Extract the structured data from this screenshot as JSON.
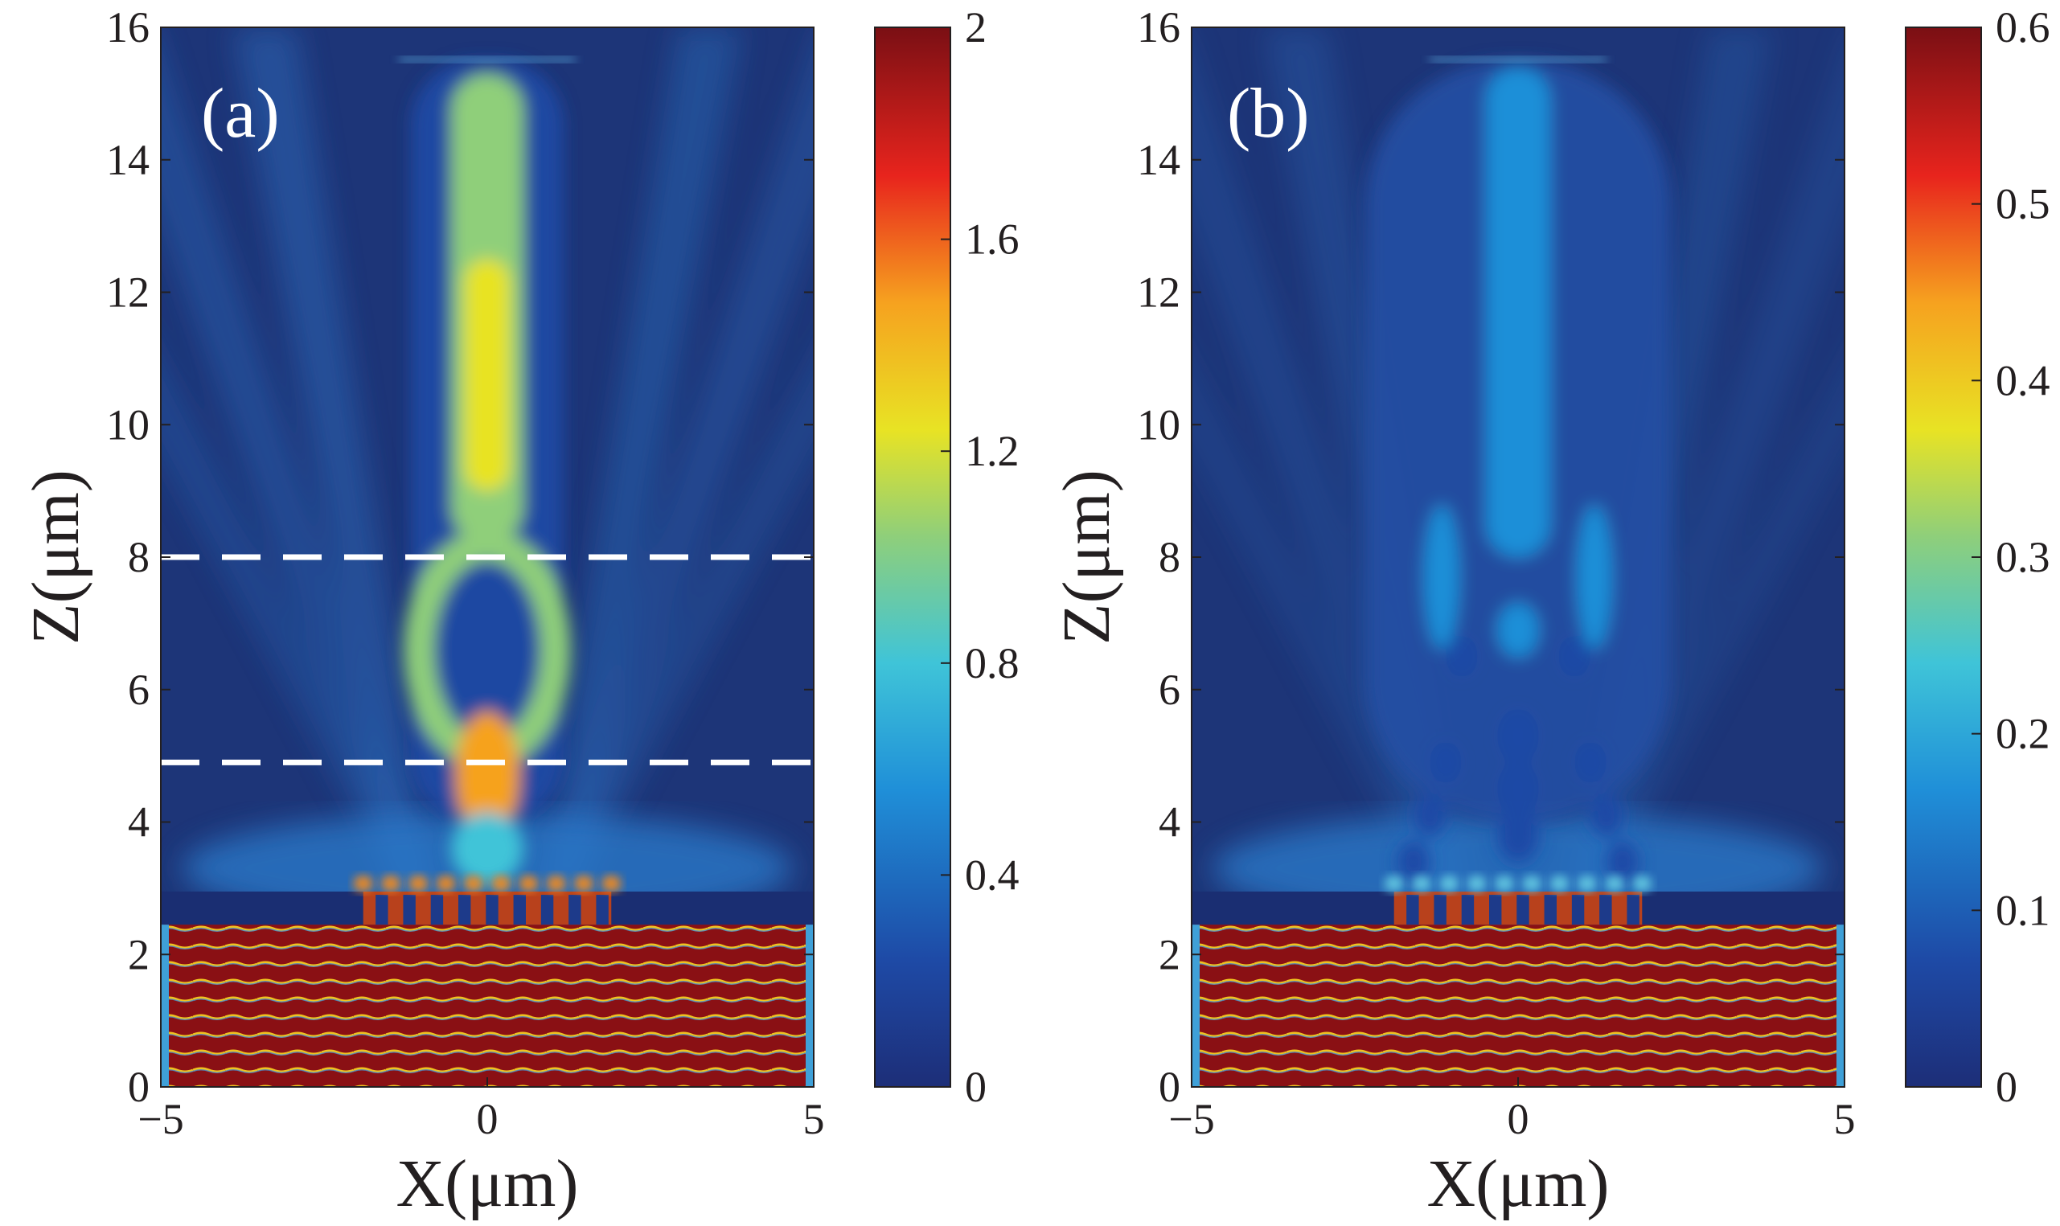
{
  "chart_data": [
    {
      "type": "heatmap",
      "panel_label": "(a)",
      "xlabel": "X(μm)",
      "ylabel": "Z(μm)",
      "xlim": [
        -5,
        5
      ],
      "ylim": [
        0,
        16
      ],
      "xticks": [
        -5,
        0,
        5
      ],
      "xtick_labels": [
        "−5",
        "0",
        "5"
      ],
      "yticks": [
        0,
        2,
        4,
        6,
        8,
        10,
        12,
        14,
        16
      ],
      "ytick_labels": [
        "0",
        "2",
        "4",
        "6",
        "8",
        "10",
        "12",
        "14",
        "16"
      ],
      "colorbar": {
        "min": 0,
        "max": 2,
        "ticks": [
          0,
          0.4,
          0.8,
          1.2,
          1.6,
          2
        ],
        "tick_labels": [
          "0",
          "0.4",
          "0.8",
          "1.2",
          "1.6",
          "2"
        ]
      },
      "focus_peak": 1.5,
      "dashed_lines_z": [
        8,
        4.9
      ],
      "grating_columns": 9,
      "grating_x_range": [
        -1.9,
        1.9
      ],
      "grating_z_range": [
        2.45,
        2.95
      ],
      "substrate_z_top": 2.45,
      "annotation": "white dashed horizontal lines"
    },
    {
      "type": "heatmap",
      "panel_label": "(b)",
      "xlabel": "X(μm)",
      "ylabel": "Z(μm)",
      "xlim": [
        -5,
        5
      ],
      "ylim": [
        0,
        16
      ],
      "xticks": [
        -5,
        0,
        5
      ],
      "xtick_labels": [
        "−5",
        "0",
        "5"
      ],
      "yticks": [
        0,
        2,
        4,
        6,
        8,
        10,
        12,
        14,
        16
      ],
      "ytick_labels": [
        "0",
        "2",
        "4",
        "6",
        "8",
        "10",
        "12",
        "14",
        "16"
      ],
      "colorbar": {
        "min": 0,
        "max": 0.6,
        "ticks": [
          0,
          0.1,
          0.2,
          0.3,
          0.4,
          0.5,
          0.6
        ],
        "tick_labels": [
          "0",
          "0.1",
          "0.2",
          "0.3",
          "0.4",
          "0.5",
          "0.6"
        ]
      },
      "focus_peak": 0.2,
      "dashed_lines_z": [],
      "grating_columns": 9,
      "grating_x_range": [
        -1.9,
        1.9
      ],
      "grating_z_range": [
        2.45,
        2.95
      ],
      "substrate_z_top": 2.45
    }
  ],
  "colors": {
    "background": "#1d3578",
    "substrate": "#861414",
    "jet_low": "#0d2c85",
    "jet_high": "#8b0e14",
    "dashed_line": "#ffffff",
    "axis": "#231f20"
  }
}
